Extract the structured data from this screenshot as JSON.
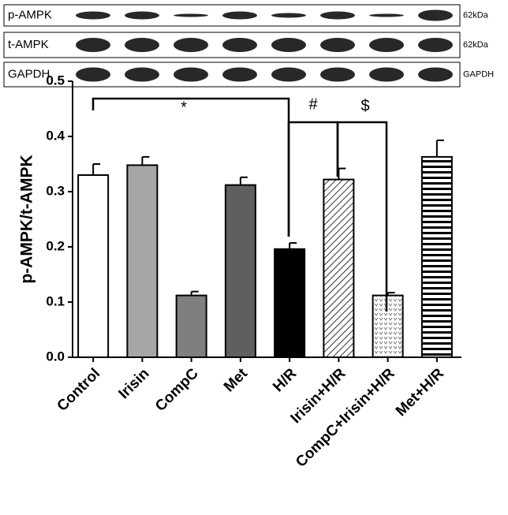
{
  "blots": [
    {
      "name": "p-AMPK",
      "size": "62kDa"
    },
    {
      "name": "t-AMPK",
      "size": "62kDa"
    },
    {
      "name": "GAPDH",
      "size": "GAPDH"
    }
  ],
  "chart_data": {
    "type": "bar",
    "y_label": "p-AMPK/t-AMPK",
    "categories": [
      "Control",
      "Irisin",
      "CompC",
      "Met",
      "H/R",
      "Irisin+H/R",
      "CompC+Irisin+H/R",
      "Met+H/R"
    ],
    "values": [
      0.33,
      0.348,
      0.112,
      0.312,
      0.196,
      0.322,
      0.112,
      0.363
    ],
    "errors": [
      0.02,
      0.015,
      0.007,
      0.014,
      0.011,
      0.02,
      0.005,
      0.03
    ],
    "colors": [
      "#ffffff",
      "#a6a6a6",
      "#7f7f7f",
      "#5f5f5f",
      "#000000",
      "#ffffff",
      "#ffffff",
      "#ffffff"
    ],
    "ylim": [
      0,
      0.5
    ],
    "yticks": [
      {
        "value": 0,
        "label": "0.0"
      },
      0.1,
      0.2,
      0.3,
      0.4,
      0.5
    ],
    "annotations": [
      "*",
      "#",
      "$"
    ]
  }
}
